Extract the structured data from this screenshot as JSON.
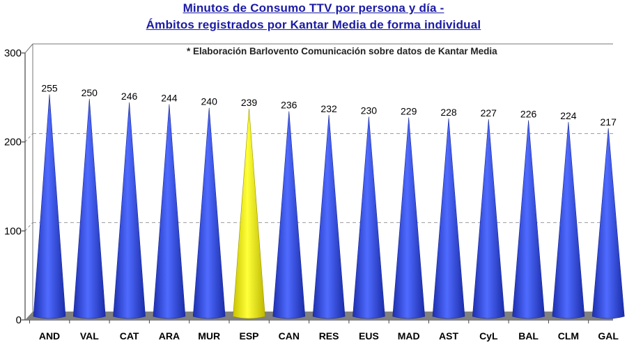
{
  "chart_data": {
    "type": "bar",
    "title": "Minutos de Consumo TTV por persona y día -",
    "subtitle": "Ámbitos registrados por Kantar Media de forma individual",
    "annotation": "* Elaboración Barlovento Comunicación sobre datos de Kantar Media",
    "categories": [
      "AND",
      "VAL",
      "CAT",
      "ARA",
      "MUR",
      "ESP",
      "CAN",
      "RES",
      "EUS",
      "MAD",
      "AST",
      "CyL",
      "BAL",
      "CLM",
      "GAL"
    ],
    "values": [
      255,
      250,
      246,
      244,
      240,
      239,
      236,
      232,
      230,
      229,
      228,
      227,
      226,
      224,
      217
    ],
    "highlight_category": "ESP",
    "bar_shape": "cone",
    "colors": {
      "default": "#2f4fe0",
      "highlight": "#f2f20a",
      "floor": "#808080"
    },
    "y_ticks": [
      "300",
      "200",
      "100",
      "0"
    ],
    "y_tick_values": [
      300,
      200,
      100,
      0
    ],
    "ylim": [
      0,
      300
    ],
    "grid": "dashed horizontal at 100 and 200",
    "xlabel": "",
    "ylabel": ""
  }
}
